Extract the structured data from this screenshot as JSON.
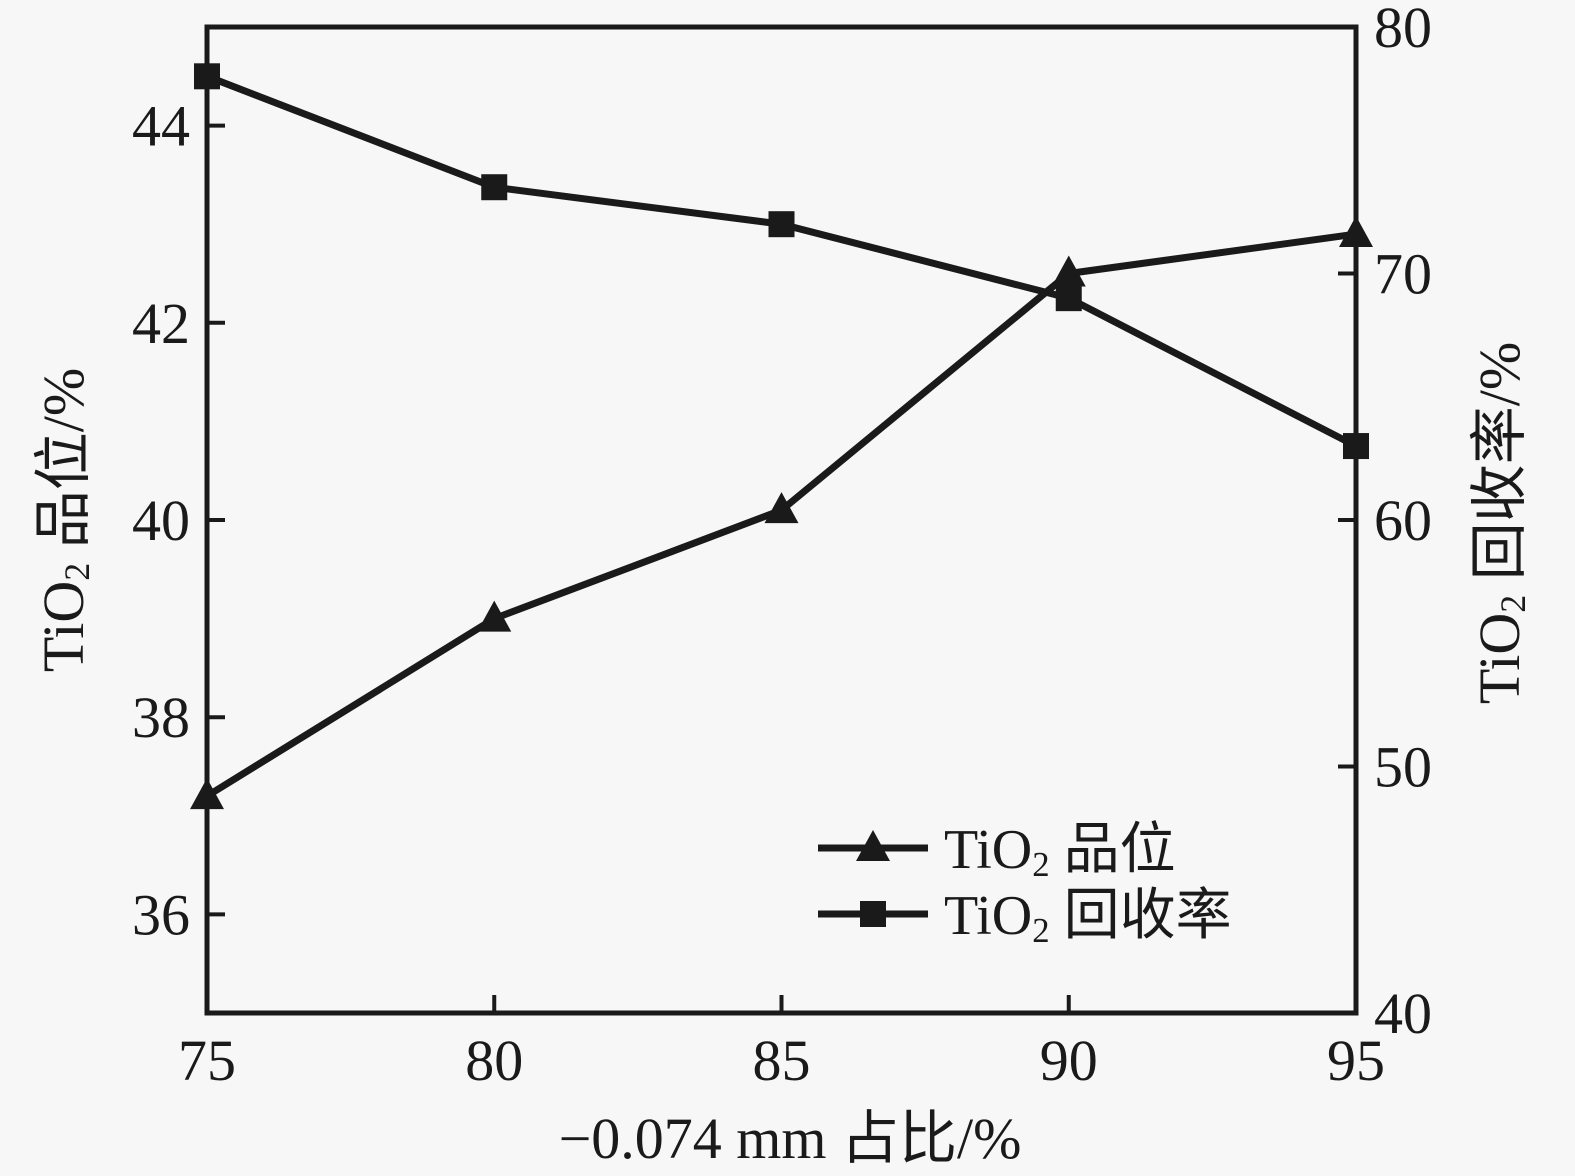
{
  "chart_data": {
    "type": "line",
    "x": [
      75,
      80,
      85,
      90,
      95
    ],
    "xlabel": "−0.074 mm 占比/%",
    "x_ticks": [
      75,
      80,
      85,
      90,
      95
    ],
    "xlim": [
      75,
      95
    ],
    "left_axis": {
      "label": "TiO₂ 品位/%",
      "lim": [
        35,
        45
      ],
      "ticks": [
        36,
        38,
        40,
        42,
        44
      ]
    },
    "right_axis": {
      "label": "TiO₂ 回收率/%",
      "lim": [
        40,
        80
      ],
      "ticks": [
        40,
        50,
        60,
        70,
        80
      ]
    },
    "series": [
      {
        "name": "TiO₂ 品位",
        "axis": "left",
        "marker": "triangle",
        "values": [
          37.2,
          39.0,
          40.1,
          42.5,
          42.9
        ]
      },
      {
        "name": "TiO₂ 回收率",
        "axis": "right",
        "marker": "square",
        "values": [
          78.0,
          73.5,
          72.0,
          69.0,
          63.0
        ]
      }
    ],
    "legend": {
      "position": "inside-bottom-right",
      "entries": [
        "TiO₂ 品位",
        "TiO₂ 回收率"
      ]
    },
    "grid": false,
    "colors": {
      "line": "#1a1a1a",
      "background": "#f7f7f7"
    }
  }
}
